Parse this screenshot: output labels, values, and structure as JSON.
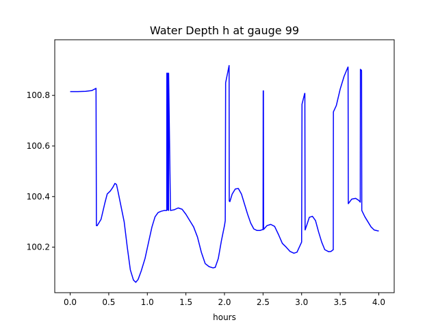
{
  "chart_data": {
    "type": "line",
    "title": "Water Depth h at gauge 99",
    "xlabel": "hours",
    "ylabel": "",
    "xlim": [
      -0.2,
      4.2
    ],
    "ylim": [
      100.02,
      101.02
    ],
    "xticks": [
      0.0,
      0.5,
      1.0,
      1.5,
      2.0,
      2.5,
      3.0,
      3.5,
      4.0
    ],
    "xtick_labels": [
      "0.0",
      "0.5",
      "1.0",
      "1.5",
      "2.0",
      "2.5",
      "3.0",
      "3.5",
      "4.0"
    ],
    "yticks": [
      100.2,
      100.4,
      100.6,
      100.8
    ],
    "ytick_labels": [
      "100.2",
      "100.4",
      "100.6",
      "100.8"
    ],
    "grid": false,
    "series": [
      {
        "color": "#0000ff",
        "x": [
          0.0,
          0.1,
          0.2,
          0.28,
          0.335,
          0.34,
          0.35,
          0.4,
          0.45,
          0.48,
          0.52,
          0.55,
          0.58,
          0.6,
          0.62,
          0.66,
          0.7,
          0.74,
          0.78,
          0.82,
          0.85,
          0.88,
          0.92,
          0.97,
          1.02,
          1.06,
          1.1,
          1.14,
          1.18,
          1.22,
          1.252,
          1.253,
          1.26,
          1.262,
          1.263,
          1.27,
          1.275,
          1.276,
          1.3,
          1.35,
          1.4,
          1.45,
          1.5,
          1.55,
          1.6,
          1.65,
          1.7,
          1.75,
          1.8,
          1.85,
          1.88,
          1.92,
          1.96,
          2.0,
          2.01,
          2.015,
          2.06,
          2.062,
          2.07,
          2.1,
          2.14,
          2.18,
          2.22,
          2.26,
          2.3,
          2.34,
          2.38,
          2.42,
          2.46,
          2.5,
          2.502,
          2.505,
          2.507,
          2.55,
          2.6,
          2.65,
          2.7,
          2.75,
          2.8,
          2.85,
          2.9,
          2.94,
          2.97,
          3.0,
          3.005,
          3.04,
          3.042,
          3.045,
          3.07,
          3.1,
          3.14,
          3.18,
          3.22,
          3.26,
          3.3,
          3.35,
          3.38,
          3.41,
          3.412,
          3.45,
          3.5,
          3.55,
          3.6,
          3.602,
          3.605,
          3.65,
          3.7,
          3.74,
          3.76,
          3.762,
          3.77,
          3.775,
          3.777,
          3.78,
          3.82,
          3.86,
          3.9,
          3.94,
          3.98,
          4.0
        ],
        "y": [
          100.815,
          100.815,
          100.816,
          100.819,
          100.828,
          100.285,
          100.285,
          100.31,
          100.375,
          100.41,
          100.422,
          100.435,
          100.452,
          100.448,
          100.42,
          100.36,
          100.3,
          100.2,
          100.11,
          100.07,
          100.061,
          100.072,
          100.105,
          100.155,
          100.225,
          100.28,
          100.32,
          100.337,
          100.342,
          100.345,
          100.345,
          100.888,
          100.888,
          100.888,
          100.348,
          100.348,
          100.345,
          100.888,
          100.345,
          100.348,
          100.355,
          100.35,
          100.33,
          100.305,
          100.28,
          100.24,
          100.18,
          100.135,
          100.123,
          100.118,
          100.12,
          100.155,
          100.225,
          100.285,
          100.305,
          100.85,
          100.918,
          100.382,
          100.38,
          100.41,
          100.43,
          100.432,
          100.41,
          100.37,
          100.33,
          100.295,
          100.272,
          100.266,
          100.266,
          100.27,
          100.818,
          100.818,
          100.27,
          100.285,
          100.29,
          100.282,
          100.25,
          100.215,
          100.2,
          100.183,
          100.176,
          100.18,
          100.2,
          100.22,
          100.765,
          100.808,
          100.808,
          100.268,
          100.29,
          100.318,
          100.322,
          100.305,
          100.26,
          100.22,
          100.19,
          100.182,
          100.183,
          100.19,
          100.735,
          100.76,
          100.825,
          100.875,
          100.912,
          100.912,
          100.372,
          100.39,
          100.393,
          100.385,
          100.378,
          100.903,
          100.9,
          100.9,
          100.895,
          100.345,
          100.32,
          100.3,
          100.28,
          100.268,
          100.265,
          100.264
        ]
      }
    ]
  }
}
